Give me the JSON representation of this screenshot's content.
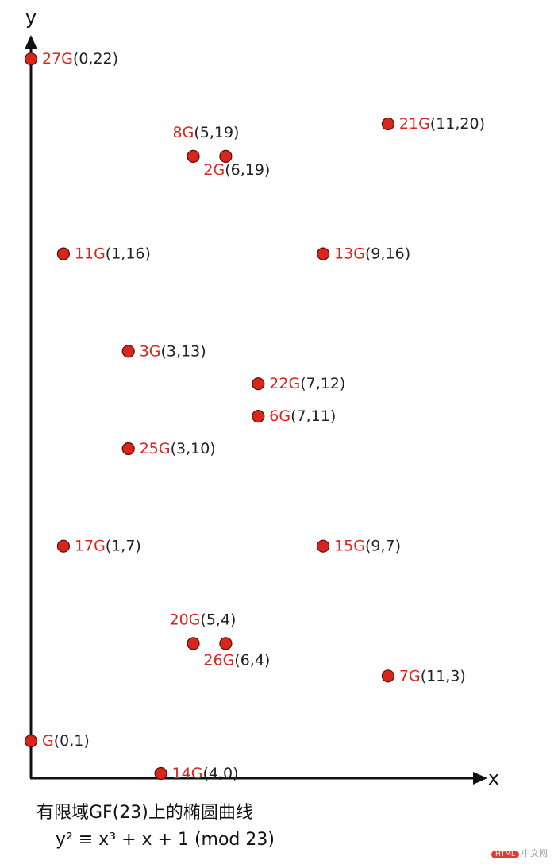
{
  "chart_data": {
    "type": "scatter",
    "xlabel": "x",
    "ylabel": "y",
    "xlim": [
      0,
      13.9
    ],
    "ylim": [
      0,
      22
    ],
    "grid": false,
    "points": [
      {
        "g": "27G",
        "coord": "(0,22)",
        "x": 0,
        "y": 22
      },
      {
        "g": "21G",
        "coord": "(11,20)",
        "x": 11,
        "y": 20
      },
      {
        "g": "8G",
        "coord": "(5,19)",
        "x": 5,
        "y": 19
      },
      {
        "g": "2G",
        "coord": "(6,19)",
        "x": 6,
        "y": 19
      },
      {
        "g": "11G",
        "coord": "(1,16)",
        "x": 1,
        "y": 16
      },
      {
        "g": "13G",
        "coord": "(9,16)",
        "x": 9,
        "y": 16
      },
      {
        "g": "3G",
        "coord": "(3,13)",
        "x": 3,
        "y": 13
      },
      {
        "g": "22G",
        "coord": "(7,12)",
        "x": 7,
        "y": 12
      },
      {
        "g": "6G",
        "coord": "(7,11)",
        "x": 7,
        "y": 11
      },
      {
        "g": "25G",
        "coord": "(3,10)",
        "x": 3,
        "y": 10
      },
      {
        "g": "17G",
        "coord": "(1,7)",
        "x": 1,
        "y": 7
      },
      {
        "g": "15G",
        "coord": "(9,7)",
        "x": 9,
        "y": 7
      },
      {
        "g": "20G",
        "coord": "(5,4)",
        "x": 5,
        "y": 4
      },
      {
        "g": "26G",
        "coord": "(6,4)",
        "x": 6,
        "y": 4
      },
      {
        "g": "7G",
        "coord": "(11,3)",
        "x": 11,
        "y": 3
      },
      {
        "g": "G",
        "coord": "(0,1)",
        "x": 0,
        "y": 1
      },
      {
        "g": "14G",
        "coord": "(4,0)",
        "x": 4,
        "y": 0
      }
    ],
    "caption": [
      "有限域GF(23)上的椭圆曲线",
      "y² ≡ x³ + x + 1 (mod 23)"
    ]
  },
  "watermark": {
    "badge": "HTML",
    "text": "中文网"
  },
  "colors": {
    "point": "#d9261c",
    "point_edge": "#5a0a05",
    "axis": "#111111"
  }
}
